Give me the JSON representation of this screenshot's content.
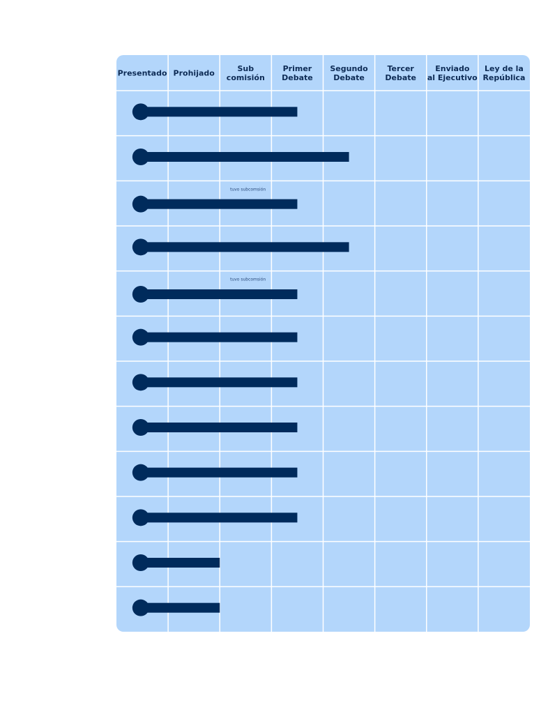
{
  "stages": [
    [
      "Presentado"
    ],
    [
      "Prohijado"
    ],
    [
      "Sub",
      "comisión"
    ],
    [
      "Primer",
      "Debate"
    ],
    [
      "Segundo",
      "Debate"
    ],
    [
      "Tercer",
      "Debate"
    ],
    [
      "Enviado",
      "al Ejecutivo"
    ],
    [
      "Ley de la",
      "República"
    ]
  ],
  "rows": [
    {
      "end": 3.5
    },
    {
      "end": 4.5
    },
    {
      "end": 3.5,
      "note": "tuvo subcomsión"
    },
    {
      "end": 4.5
    },
    {
      "end": 3.5,
      "note": "tuvo subcomsión"
    },
    {
      "end": 3.5
    },
    {
      "end": 3.5
    },
    {
      "end": 3.5
    },
    {
      "end": 3.5
    },
    {
      "end": 3.5
    },
    {
      "end": 2
    },
    {
      "end": 2
    }
  ]
}
